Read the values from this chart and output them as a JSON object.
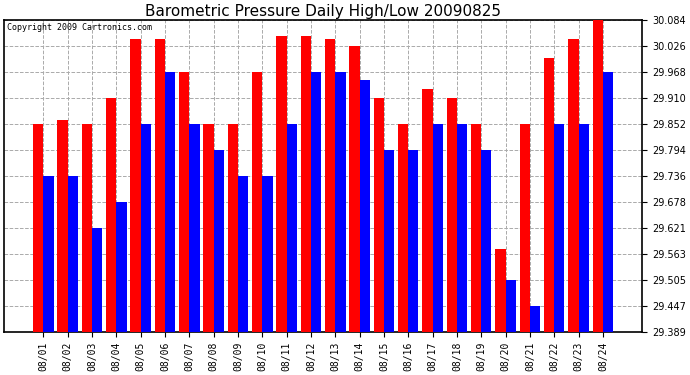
{
  "title": "Barometric Pressure Daily High/Low 20090825",
  "copyright": "Copyright 2009 Cartronics.com",
  "dates": [
    "08/01",
    "08/02",
    "08/03",
    "08/04",
    "08/05",
    "08/06",
    "08/07",
    "08/08",
    "08/09",
    "08/10",
    "08/11",
    "08/12",
    "08/13",
    "08/14",
    "08/15",
    "08/16",
    "08/17",
    "08/18",
    "08/19",
    "08/20",
    "08/21",
    "08/22",
    "08/23",
    "08/24"
  ],
  "highs": [
    29.852,
    29.862,
    29.852,
    29.91,
    30.042,
    30.042,
    29.968,
    29.852,
    29.852,
    29.968,
    30.05,
    30.05,
    30.042,
    30.026,
    29.91,
    29.852,
    29.93,
    29.91,
    29.852,
    29.573,
    29.852,
    30.0,
    30.042,
    30.084
  ],
  "lows": [
    29.736,
    29.736,
    29.621,
    29.678,
    29.852,
    29.968,
    29.852,
    29.794,
    29.736,
    29.736,
    29.852,
    29.968,
    29.968,
    29.95,
    29.794,
    29.794,
    29.852,
    29.852,
    29.794,
    29.505,
    29.447,
    29.852,
    29.852,
    29.968
  ],
  "ylim_min": 29.389,
  "ylim_max": 30.084,
  "yticks": [
    29.389,
    29.447,
    29.505,
    29.563,
    29.621,
    29.678,
    29.736,
    29.794,
    29.852,
    29.91,
    29.968,
    30.026,
    30.084
  ],
  "high_color": "#ff0000",
  "low_color": "#0000ff",
  "bg_color": "#ffffff",
  "grid_color": "#aaaaaa",
  "title_fontsize": 11,
  "tick_fontsize": 7,
  "bar_width": 0.42
}
